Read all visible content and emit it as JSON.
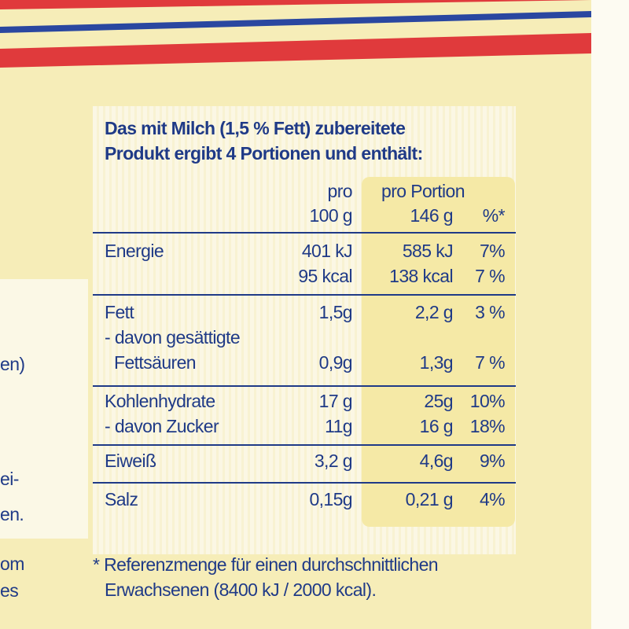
{
  "colors": {
    "text": "#1f3a87",
    "background": "#f6edb8",
    "stripe_red": "#e03a3c",
    "stripe_blue": "#2a47a0"
  },
  "heading": [
    "Das mit Milch (1,5 % Fett) zubereitete",
    "Produkt ergibt 4 Portionen und enthält:"
  ],
  "columns": {
    "col1_line1": "pro",
    "col1_line2": "100 g",
    "col2_line1": "pro Portion",
    "col2_line2": "146 g",
    "col3_line2": "%*"
  },
  "rows": [
    {
      "label": "Energie",
      "per100": "401 kJ",
      "portion": "585 kJ",
      "pct": "7%"
    },
    {
      "label": "",
      "per100": "95 kcal",
      "portion": "138 kcal",
      "pct": "7 %"
    },
    {
      "label": "Fett",
      "per100": "1,5g",
      "portion": "2,2 g",
      "pct": "3 %"
    },
    {
      "label": "- davon gesättigte"
    },
    {
      "label": "Fettsäuren",
      "per100": "0,9g",
      "portion": "1,3g",
      "pct": "7 %"
    },
    {
      "label": "Kohlenhydrate",
      "per100": "17 g",
      "portion": "25g",
      "pct": "10%"
    },
    {
      "label": "- davon Zucker",
      "per100": "11g",
      "portion": "16 g",
      "pct": "18%"
    },
    {
      "label": "Eiweiß",
      "per100": "3,2 g",
      "portion": "4,6g",
      "pct": "9%"
    },
    {
      "label": "Salz",
      "per100": "0,15g",
      "portion": "0,21 g",
      "pct": "4%"
    }
  ],
  "footnote": [
    "* Referenzmenge für einen durchschnittlichen",
    "Erwachsenen (8400 kJ / 2000 kcal)."
  ],
  "left_fragments": [
    "en)",
    "ei-",
    "en.",
    "om",
    "es"
  ]
}
